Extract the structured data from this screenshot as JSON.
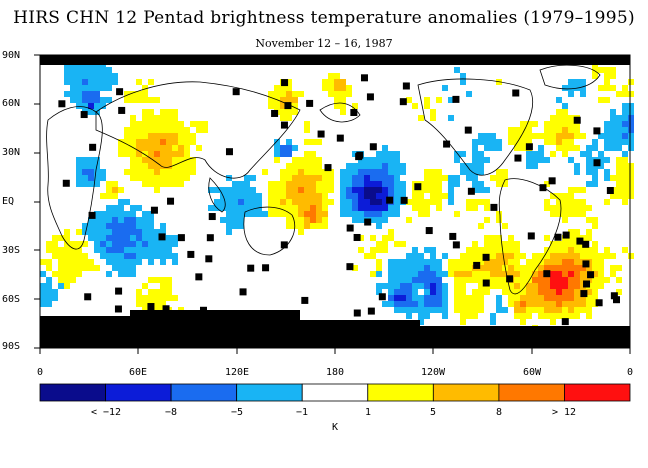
{
  "title": "HIRS CHN 12 Pentad brightness temperature anomalies (1979–1995)",
  "subtitle": "November 12 – 16, 1987",
  "map": {
    "lat_labels": [
      "90N",
      "60N",
      "30N",
      "EQ",
      "30S",
      "60S",
      "90S"
    ],
    "lon_labels": [
      "0",
      "60E",
      "120E",
      "180",
      "120W",
      "60W",
      "0"
    ],
    "land_color": "#000000"
  },
  "colorbar": {
    "unit": "K",
    "labels": [
      "< −12",
      "−8",
      "−5",
      "−1",
      "1",
      "5",
      "8",
      "> 12"
    ],
    "colors": [
      "#0a0c8c",
      "#0c1cd8",
      "#1a6cf0",
      "#19b4f4",
      "#ffffff",
      "#ffff00",
      "#ffbb00",
      "#ff7800",
      "#ff1010"
    ]
  }
}
